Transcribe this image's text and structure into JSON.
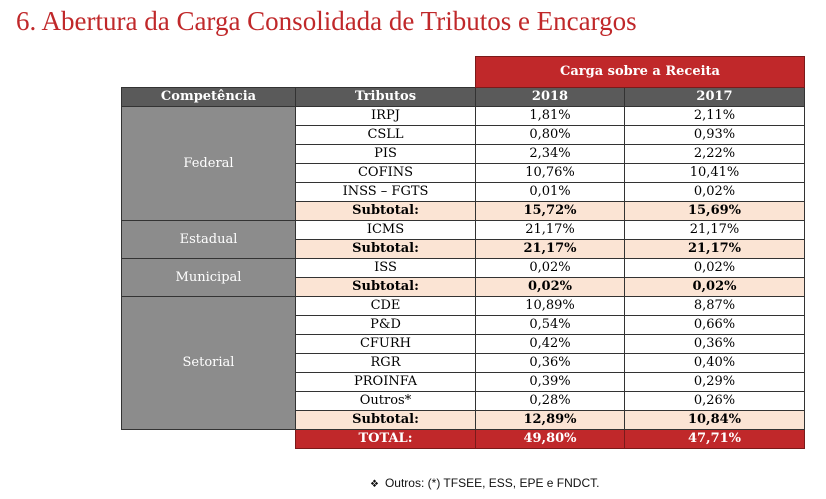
{
  "title": "6. Abertura da Carga Consolidada de Tributos e Encargos",
  "table": {
    "super_header": "Carga sobre a Receita",
    "headers": [
      "Competência",
      "Tributos",
      "2018",
      "2017"
    ],
    "groups": [
      {
        "name": "Federal",
        "rows": [
          [
            "IRPJ",
            "1,81%",
            "2,11%"
          ],
          [
            "CSLL",
            "0,80%",
            "0,93%"
          ],
          [
            "PIS",
            "2,34%",
            "2,22%"
          ],
          [
            "COFINS",
            "10,76%",
            "10,41%"
          ],
          [
            "INSS – FGTS",
            "0,01%",
            "0,02%"
          ]
        ],
        "subtotal": [
          "Subtotal:",
          "15,72%",
          "15,69%"
        ]
      },
      {
        "name": "Estadual",
        "rows": [
          [
            "ICMS",
            "21,17%",
            "21,17%"
          ]
        ],
        "subtotal": [
          "Subtotal:",
          "21,17%",
          "21,17%"
        ]
      },
      {
        "name": "Municipal",
        "rows": [
          [
            "ISS",
            "0,02%",
            "0,02%"
          ]
        ],
        "subtotal": [
          "Subtotal:",
          "0,02%",
          "0,02%"
        ]
      },
      {
        "name": "Setorial",
        "rows": [
          [
            "CDE",
            "10,89%",
            "8,87%"
          ],
          [
            "P&D",
            "0,54%",
            "0,66%"
          ],
          [
            "CFURH",
            "0,42%",
            "0,36%"
          ],
          [
            "RGR",
            "0,36%",
            "0,40%"
          ],
          [
            "PROINFA",
            "0,39%",
            "0,29%"
          ],
          [
            "Outros*",
            "0,28%",
            "0,26%"
          ]
        ],
        "subtotal": [
          "Subtotal:",
          "12,89%",
          "10,84%"
        ]
      }
    ],
    "total": [
      "TOTAL:",
      "49,80%",
      "47,71%"
    ]
  },
  "note": {
    "bullet": "❖",
    "text": "Outros: (*) TFSEE, ESS, EPE e FNDCT."
  },
  "colors": {
    "accent_red": "#c0282a",
    "header_gray": "#5a5a5a",
    "group_gray": "#8c8c8c",
    "subtotal_peach": "#fbe4d4"
  }
}
